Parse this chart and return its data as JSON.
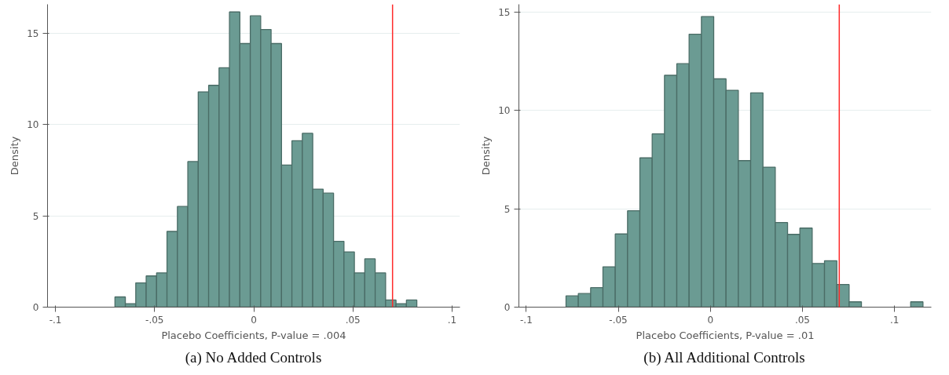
{
  "chart_data": [
    {
      "type": "histogram",
      "title": "(a) No Added Controls",
      "xlabel": "Placebo Coefficients, P-value = .004",
      "ylabel": "Density",
      "color": "#6b9b93",
      "bins": [
        -0.07,
        -0.06475,
        -0.0595,
        -0.05425,
        -0.049,
        -0.04375,
        -0.0385,
        -0.03325,
        -0.028,
        -0.02275,
        -0.0175,
        -0.01225,
        -0.007,
        -0.00175,
        0.0035,
        0.00875,
        0.014,
        0.01925,
        0.0245,
        0.02975,
        0.035,
        0.04025,
        0.0455,
        0.05075,
        0.056,
        0.06125,
        0.0665,
        0.07175,
        0.077,
        0.08225
      ],
      "values": [
        0.56,
        0.19,
        1.33,
        1.71,
        1.88,
        4.15,
        5.52,
        7.98,
        11.8,
        12.16,
        13.12,
        16.18,
        14.45,
        15.97,
        15.22,
        14.45,
        7.79,
        9.12,
        9.53,
        6.47,
        6.25,
        3.61,
        3.03,
        1.88,
        2.65,
        1.88,
        0.39,
        0.19,
        0.39
      ],
      "xlim": [
        -0.104,
        0.104
      ],
      "ylim": [
        0,
        16.6
      ],
      "xticks": [
        {
          "value": -0.1,
          "label": "-.1"
        },
        {
          "value": -0.05,
          "label": "-.05"
        },
        0,
        {
          "value": 0.05,
          "label": ".05"
        },
        {
          "value": 0.1,
          "label": ".1"
        }
      ],
      "yticks": [
        0,
        5,
        10,
        15
      ],
      "grid": "y",
      "ref_lines": [
        {
          "axis": "x",
          "value": 0.07,
          "color": "#ff2a2a"
        }
      ]
    },
    {
      "type": "histogram",
      "title": "(b) All Additional Controls",
      "xlabel": "Placebo Coefficients, P-value = .01",
      "ylabel": "Density",
      "color": "#6b9b93",
      "bins": [
        -0.0784,
        -0.071715,
        -0.06503,
        -0.058345,
        -0.05166,
        -0.044975,
        -0.03829,
        -0.031605,
        -0.02492,
        -0.018235,
        -0.01155,
        -0.004865,
        0.00182,
        0.008505,
        0.01519,
        0.021875,
        0.02856,
        0.035245,
        0.04193,
        0.048615,
        0.0553,
        0.061985,
        0.06867,
        0.075355,
        0.08204,
        0.088725,
        0.09541,
        0.102095,
        0.10878,
        0.115465
      ],
      "values": [
        0.57,
        0.69,
        0.99,
        2.05,
        3.72,
        4.9,
        7.59,
        8.81,
        11.79,
        12.38,
        13.88,
        14.78,
        11.61,
        11.03,
        7.45,
        10.9,
        7.12,
        4.3,
        3.7,
        4.02,
        2.22,
        2.36,
        1.15,
        0.27,
        0,
        0,
        0,
        0,
        0.27
      ],
      "xlim": [
        -0.104,
        0.12
      ],
      "ylim": [
        0,
        15.4
      ],
      "xticks": [
        {
          "value": -0.1,
          "label": "-.1"
        },
        {
          "value": -0.05,
          "label": "-.05"
        },
        0,
        {
          "value": 0.05,
          "label": ".05"
        },
        {
          "value": 0.1,
          "label": ".1"
        }
      ],
      "yticks": [
        0,
        5,
        10,
        15
      ],
      "grid": "y",
      "ref_lines": [
        {
          "axis": "x",
          "value": 0.07,
          "color": "#ff2a2a"
        }
      ]
    }
  ]
}
